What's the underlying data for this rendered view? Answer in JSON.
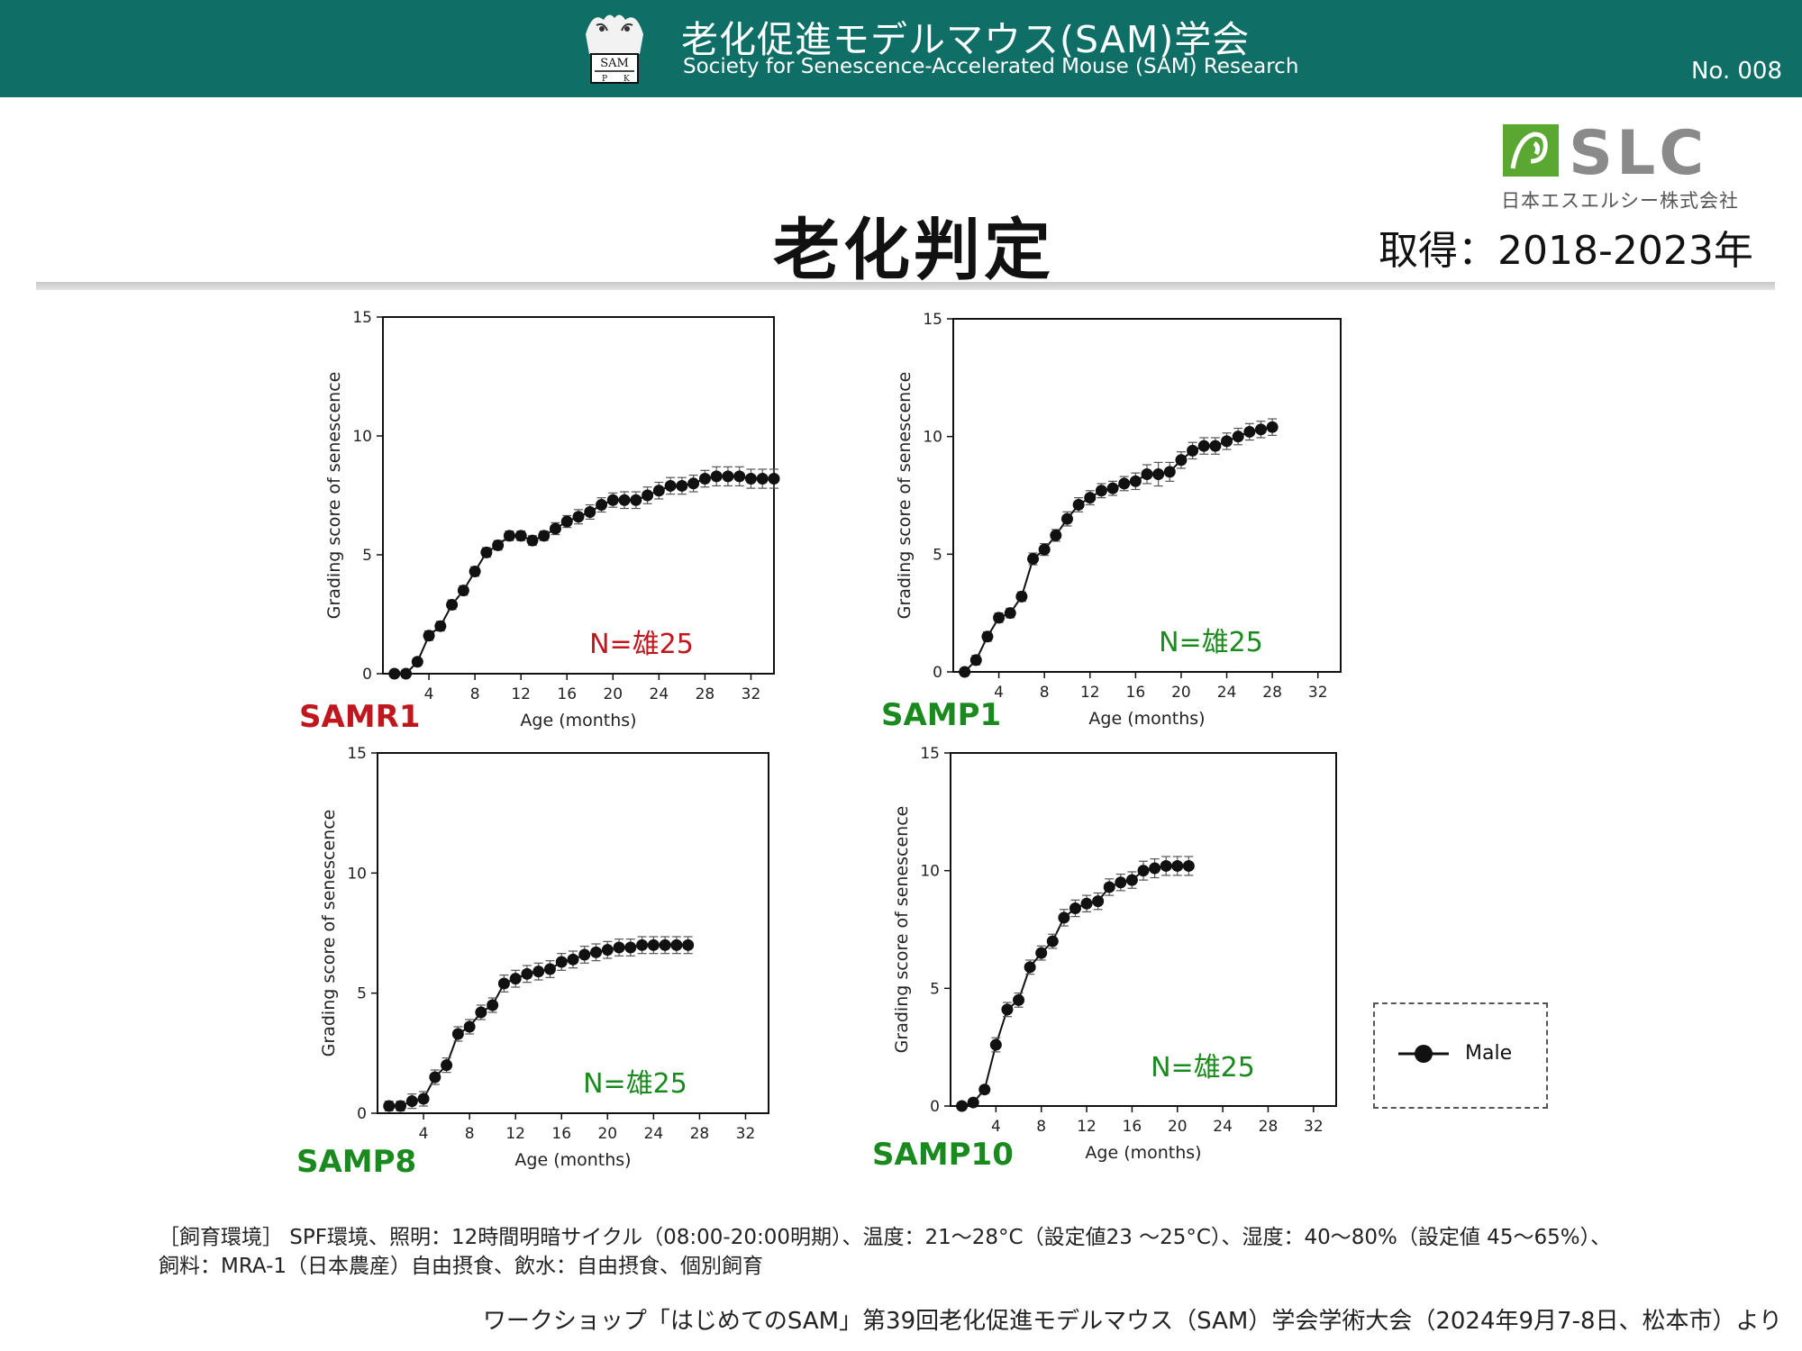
{
  "header": {
    "society_name_jp": "老化促進モデルマウス(SAM)学会",
    "society_name_en": "Society for Senescence-Accelerated Mouse (SAM) Research",
    "doc_number": "No. 008",
    "logo_text": "SAM",
    "logo_letters": [
      "P",
      "K"
    ],
    "background_color": "#0f6e66"
  },
  "company": {
    "logo_text": "SLC",
    "name": "日本エスエルシー株式会社",
    "logo_icon": "mouse-tile-icon",
    "colors": {
      "green": "#5aa832",
      "gray": "#8a8a8a"
    }
  },
  "title": "老化判定",
  "period": "取得：2018-2023年",
  "legend": {
    "label": "Male",
    "marker": "filled-circle-with-line-icon"
  },
  "footnote": {
    "line1": "［飼育環境］ SPF環境、照明：12時間明暗サイクル（08:00-20:00明期）、温度：21～28°C（設定値23 ～25°C）、湿度：40～80%（設定値 45～65%）、",
    "line2": "飼料：MRA-1（日本農産）自由摂食、飲水：自由摂食、個別飼育"
  },
  "source": "ワークショップ「はじめてのSAM」第39回老化促進モデルマウス（SAM）学会学術大会（2024年9月7-8日、松本市）より",
  "chart_data": [
    {
      "type": "line",
      "strain": "SAMR1",
      "strain_color": "#c0161d",
      "n_label": "N=雄25",
      "n_color": "#c0161d",
      "xlabel": "Age (months)",
      "ylabel": "Grading score of senescence",
      "xlim": [
        0,
        34
      ],
      "ylim": [
        0,
        15
      ],
      "xticks": [
        4,
        8,
        12,
        16,
        20,
        24,
        28,
        32
      ],
      "yticks": [
        0,
        5,
        10,
        15
      ],
      "series": [
        {
          "x": [
            1,
            2,
            3,
            4,
            5,
            6,
            7,
            8,
            9,
            10,
            11,
            12,
            13,
            14,
            15,
            16,
            17,
            18,
            19,
            20,
            21,
            22,
            23,
            24,
            25,
            26,
            27,
            28,
            29,
            30,
            31,
            32,
            33,
            34
          ],
          "values": [
            0,
            0,
            0.5,
            1.6,
            2.0,
            2.9,
            3.5,
            4.3,
            5.1,
            5.4,
            5.8,
            5.8,
            5.6,
            5.8,
            6.1,
            6.4,
            6.6,
            6.8,
            7.1,
            7.3,
            7.3,
            7.3,
            7.5,
            7.7,
            7.9,
            7.9,
            8.0,
            8.2,
            8.3,
            8.3,
            8.3,
            8.2,
            8.2,
            8.2
          ],
          "errors": [
            0,
            0,
            0.15,
            0.2,
            0.2,
            0.2,
            0.2,
            0.2,
            0.2,
            0.2,
            0.2,
            0.2,
            0.2,
            0.2,
            0.25,
            0.25,
            0.3,
            0.3,
            0.3,
            0.3,
            0.35,
            0.35,
            0.35,
            0.35,
            0.35,
            0.35,
            0.35,
            0.35,
            0.4,
            0.4,
            0.4,
            0.4,
            0.4,
            0.4
          ]
        }
      ]
    },
    {
      "type": "line",
      "strain": "SAMP1",
      "strain_color": "#1a8a1e",
      "n_label": "N=雄25",
      "n_color": "#1a8a1e",
      "xlabel": "Age (months)",
      "ylabel": "Grading score of senescence",
      "xlim": [
        0,
        34
      ],
      "ylim": [
        0,
        15
      ],
      "xticks": [
        4,
        8,
        12,
        16,
        20,
        24,
        28,
        32
      ],
      "yticks": [
        0,
        5,
        10,
        15
      ],
      "series": [
        {
          "x": [
            1,
            2,
            3,
            4,
            5,
            6,
            7,
            8,
            9,
            10,
            11,
            12,
            13,
            14,
            15,
            16,
            17,
            18,
            19,
            20,
            21,
            22,
            23,
            24,
            25,
            26,
            27,
            28
          ],
          "values": [
            0,
            0.5,
            1.5,
            2.3,
            2.5,
            3.2,
            4.8,
            5.2,
            5.8,
            6.5,
            7.1,
            7.4,
            7.7,
            7.8,
            8.0,
            8.1,
            8.4,
            8.4,
            8.5,
            9.0,
            9.4,
            9.6,
            9.6,
            9.8,
            10.0,
            10.2,
            10.3,
            10.4
          ],
          "errors": [
            0,
            0.2,
            0.2,
            0.2,
            0.2,
            0.2,
            0.25,
            0.25,
            0.25,
            0.3,
            0.3,
            0.3,
            0.3,
            0.3,
            0.3,
            0.35,
            0.4,
            0.5,
            0.4,
            0.35,
            0.35,
            0.35,
            0.35,
            0.35,
            0.35,
            0.35,
            0.35,
            0.35
          ]
        }
      ]
    },
    {
      "type": "line",
      "strain": "SAMP8",
      "strain_color": "#1a8a1e",
      "n_label": "N=雄25",
      "n_color": "#1a8a1e",
      "xlabel": "Age (months)",
      "ylabel": "Grading score of senescence",
      "xlim": [
        0,
        34
      ],
      "ylim": [
        0,
        15
      ],
      "xticks": [
        4,
        8,
        12,
        16,
        20,
        24,
        28,
        32
      ],
      "yticks": [
        0,
        5,
        10,
        15
      ],
      "series": [
        {
          "x": [
            1,
            2,
            3,
            4,
            5,
            6,
            7,
            8,
            9,
            10,
            11,
            12,
            13,
            14,
            15,
            16,
            17,
            18,
            19,
            20,
            21,
            22,
            23,
            24,
            25,
            26,
            27
          ],
          "values": [
            0.3,
            0.3,
            0.5,
            0.6,
            1.5,
            2.0,
            3.3,
            3.6,
            4.2,
            4.5,
            5.4,
            5.6,
            5.8,
            5.9,
            6.0,
            6.3,
            6.4,
            6.6,
            6.7,
            6.8,
            6.9,
            6.9,
            7.0,
            7.0,
            7.0,
            7.0,
            7.0
          ],
          "errors": [
            0.2,
            0.2,
            0.3,
            0.3,
            0.3,
            0.3,
            0.3,
            0.3,
            0.3,
            0.3,
            0.35,
            0.35,
            0.35,
            0.35,
            0.35,
            0.35,
            0.35,
            0.35,
            0.35,
            0.35,
            0.35,
            0.35,
            0.35,
            0.35,
            0.35,
            0.35,
            0.35
          ]
        }
      ]
    },
    {
      "type": "line",
      "strain": "SAMP10",
      "strain_color": "#1a8a1e",
      "n_label": "N=雄25",
      "n_color": "#1a8a1e",
      "xlabel": "Age (months)",
      "ylabel": "Grading score of senescence",
      "xlim": [
        0,
        34
      ],
      "ylim": [
        0,
        15
      ],
      "xticks": [
        4,
        8,
        12,
        16,
        20,
        24,
        28,
        32
      ],
      "yticks": [
        0,
        5,
        10,
        15
      ],
      "series": [
        {
          "x": [
            1,
            2,
            3,
            4,
            5,
            6,
            7,
            8,
            9,
            10,
            11,
            12,
            13,
            14,
            15,
            16,
            17,
            18,
            19,
            20,
            21
          ],
          "values": [
            0,
            0.15,
            0.7,
            2.6,
            4.1,
            4.5,
            5.9,
            6.5,
            7.0,
            8.0,
            8.4,
            8.6,
            8.7,
            9.3,
            9.5,
            9.6,
            10.0,
            10.1,
            10.2,
            10.2,
            10.2
          ],
          "errors": [
            0,
            0.1,
            0.15,
            0.3,
            0.3,
            0.3,
            0.3,
            0.3,
            0.3,
            0.35,
            0.35,
            0.35,
            0.35,
            0.35,
            0.35,
            0.35,
            0.4,
            0.4,
            0.4,
            0.4,
            0.4
          ]
        }
      ]
    }
  ]
}
